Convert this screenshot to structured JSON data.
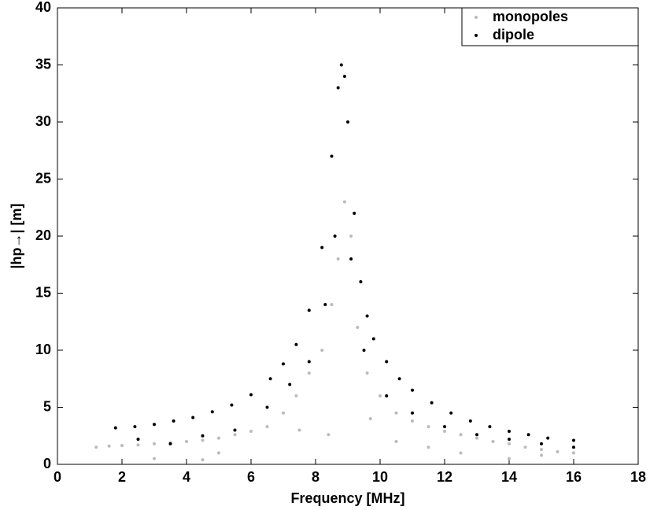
{
  "chart_data": {
    "type": "scatter",
    "xlabel": "Frequency [MHz]",
    "ylabel": "|hp→| [m]",
    "xlim": [
      0,
      18
    ],
    "xticks": [
      0,
      2,
      4,
      6,
      8,
      10,
      12,
      14,
      16,
      18
    ],
    "ylim": [
      0,
      40
    ],
    "yticks": [
      0,
      5,
      10,
      15,
      20,
      25,
      30,
      35,
      40
    ],
    "grid": false,
    "legend": "upper right",
    "series": [
      {
        "name": "monopoles",
        "color": "#bbbbbb",
        "x": [
          1.2,
          1.6,
          2,
          2.5,
          3,
          3.5,
          4,
          4.5,
          5,
          5.5,
          6,
          6.5,
          7,
          7.4,
          7.8,
          8.2,
          8.5,
          8.7,
          8.9,
          9.1,
          9.3,
          9.6,
          10,
          10.5,
          11,
          11.5,
          12,
          12.5,
          13,
          13.5,
          14,
          14.5,
          15,
          15.5,
          16,
          3,
          4.5,
          5,
          7.5,
          8.4,
          9.7,
          10.5,
          11.5,
          12.5,
          14,
          15
        ],
        "values": [
          1.5,
          1.6,
          1.65,
          1.7,
          1.8,
          1.9,
          2.0,
          2.1,
          2.3,
          2.6,
          2.9,
          3.3,
          4.5,
          6,
          8,
          10,
          14,
          18,
          23,
          20,
          12,
          8,
          6,
          4.5,
          3.8,
          3.3,
          2.9,
          2.6,
          2.3,
          2,
          1.8,
          1.5,
          1.3,
          1.1,
          1.0,
          0.5,
          0.4,
          1,
          3,
          2.6,
          4,
          2,
          1.5,
          1,
          0.5,
          0.8
        ]
      },
      {
        "name": "dipole",
        "color": "#000000",
        "x": [
          1.8,
          2.4,
          3,
          3.6,
          4.2,
          4.8,
          5.4,
          6,
          6.6,
          7,
          7.4,
          7.8,
          8.2,
          8.5,
          8.7,
          8.8,
          8.9,
          9.0,
          9.2,
          9.4,
          9.6,
          9.8,
          10.2,
          10.6,
          11,
          11.6,
          12.2,
          12.8,
          13.4,
          14,
          14.6,
          15.2,
          16,
          2.5,
          3.5,
          4.5,
          5.5,
          6.5,
          7.2,
          7.8,
          8.3,
          8.6,
          9.1,
          9.5,
          10.2,
          11,
          12,
          13,
          14,
          15,
          16
        ],
        "values": [
          3.2,
          3.3,
          3.5,
          3.8,
          4.1,
          4.6,
          5.2,
          6.1,
          7.5,
          8.8,
          10.5,
          13.5,
          19,
          27,
          33,
          35,
          34,
          30,
          22,
          16,
          13,
          11,
          9,
          7.5,
          6.5,
          5.4,
          4.5,
          3.8,
          3.3,
          2.9,
          2.6,
          2.3,
          2.1,
          2.2,
          1.8,
          2.5,
          3,
          5,
          7,
          9,
          14,
          20,
          18,
          10,
          6,
          4.5,
          3.3,
          2.6,
          2.2,
          1.8,
          1.5
        ]
      }
    ]
  }
}
